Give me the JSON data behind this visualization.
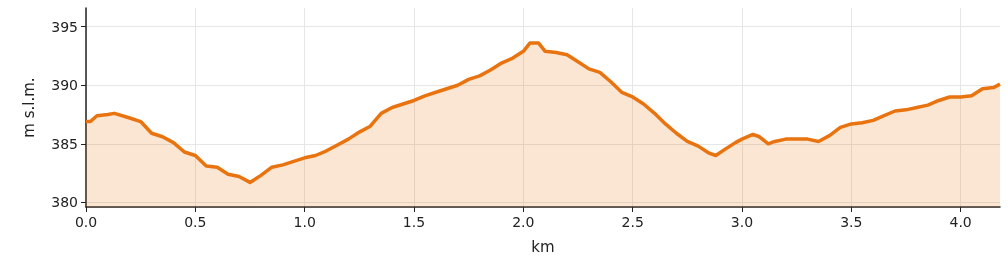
{
  "chart_data": {
    "type": "area",
    "xlabel": "km",
    "ylabel": "m s.l.m.",
    "xlim": [
      0,
      4.18
    ],
    "ylim": [
      379.6,
      396.6
    ],
    "xticks": [
      {
        "value": 0,
        "label": "0.0"
      },
      {
        "value": 0.5,
        "label": "0.5"
      },
      {
        "value": 1,
        "label": "1.0"
      },
      {
        "value": 1.5,
        "label": "1.5"
      },
      {
        "value": 2,
        "label": "2.0"
      },
      {
        "value": 2.5,
        "label": "2.5"
      },
      {
        "value": 3,
        "label": "3.0"
      },
      {
        "value": 3.5,
        "label": "3.5"
      },
      {
        "value": 4,
        "label": "4.0"
      }
    ],
    "yticks": [
      380,
      385,
      390,
      395
    ],
    "grid": true,
    "series": [
      {
        "color": "#e8730f",
        "x": [
          0,
          0.02,
          0.05,
          0.1,
          0.13,
          0.2,
          0.25,
          0.3,
          0.35,
          0.4,
          0.45,
          0.5,
          0.55,
          0.6,
          0.65,
          0.7,
          0.75,
          0.8,
          0.85,
          0.9,
          0.95,
          1.0,
          1.05,
          1.1,
          1.15,
          1.2,
          1.25,
          1.3,
          1.35,
          1.4,
          1.45,
          1.5,
          1.55,
          1.6,
          1.65,
          1.7,
          1.75,
          1.8,
          1.85,
          1.9,
          1.95,
          2.0,
          2.03,
          2.07,
          2.1,
          2.15,
          2.2,
          2.25,
          2.3,
          2.35,
          2.4,
          2.45,
          2.5,
          2.55,
          2.6,
          2.65,
          2.7,
          2.75,
          2.8,
          2.85,
          2.88,
          2.92,
          2.97,
          3.0,
          3.05,
          3.08,
          3.12,
          3.15,
          3.2,
          3.3,
          3.35,
          3.4,
          3.45,
          3.5,
          3.55,
          3.6,
          3.65,
          3.7,
          3.75,
          3.8,
          3.85,
          3.9,
          3.95,
          4.0,
          4.05,
          4.1,
          4.15,
          4.18
        ],
        "values": [
          386.9,
          386.9,
          387.4,
          387.5,
          387.6,
          387.2,
          386.9,
          385.9,
          385.6,
          385.1,
          384.3,
          384.0,
          383.1,
          383.0,
          382.4,
          382.2,
          381.7,
          382.3,
          383.0,
          383.2,
          383.5,
          383.8,
          384.0,
          384.4,
          384.9,
          385.4,
          386.0,
          386.5,
          387.6,
          388.1,
          388.4,
          388.7,
          389.1,
          389.4,
          389.7,
          390.0,
          390.5,
          390.8,
          391.3,
          391.9,
          392.3,
          392.9,
          393.6,
          393.6,
          392.9,
          392.8,
          392.6,
          392.0,
          391.4,
          391.1,
          390.3,
          389.4,
          389.0,
          388.4,
          387.6,
          386.7,
          385.9,
          385.2,
          384.8,
          384.2,
          384.0,
          384.5,
          385.1,
          385.4,
          385.8,
          385.6,
          385.0,
          385.2,
          385.4,
          385.4,
          385.2,
          385.7,
          386.4,
          386.7,
          386.8,
          387.0,
          387.4,
          387.8,
          387.9,
          388.1,
          388.3,
          388.7,
          389.0,
          389.0,
          389.1,
          389.7,
          389.8,
          390.1
        ]
      }
    ]
  }
}
